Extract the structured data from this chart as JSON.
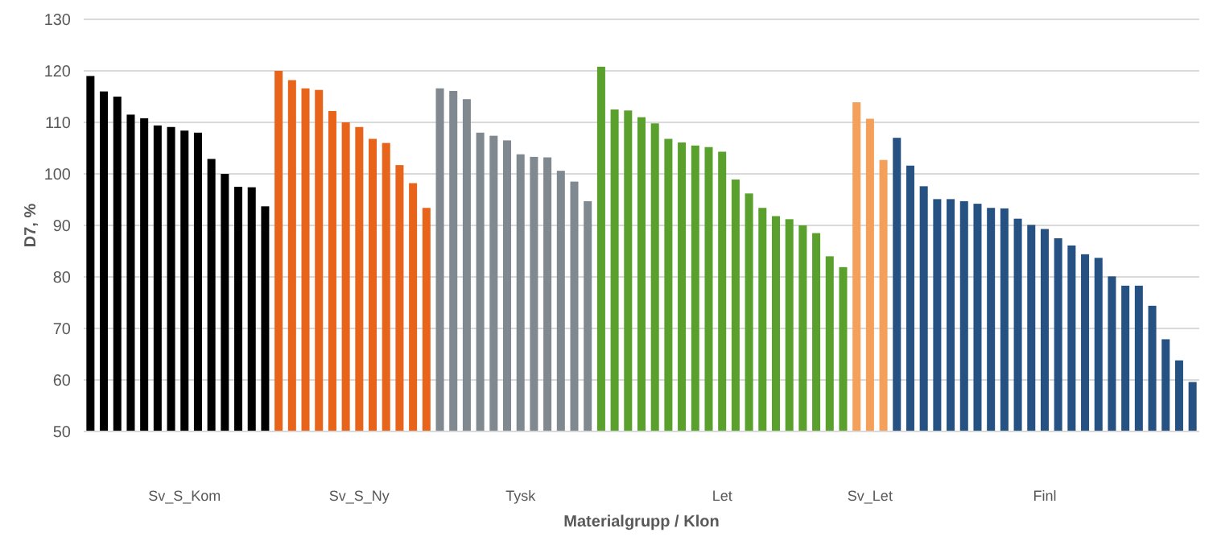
{
  "chart_data": {
    "type": "bar",
    "xlabel": "Materialgrupp / Klon",
    "ylabel": "D7, %",
    "categories": [
      null,
      null,
      null,
      null,
      null,
      null,
      null,
      "Sv_S_Kom",
      null,
      null,
      null,
      null,
      null,
      null,
      null,
      null,
      null,
      null,
      null,
      null,
      "Sv_S_Ny",
      null,
      null,
      null,
      null,
      null,
      null,
      null,
      null,
      null,
      null,
      null,
      "Tysk",
      null,
      null,
      null,
      null,
      null,
      null,
      null,
      null,
      null,
      null,
      null,
      null,
      null,
      null,
      "Let",
      null,
      null,
      null,
      null,
      null,
      null,
      null,
      null,
      null,
      null,
      "Sv_Let",
      null,
      null,
      null,
      null,
      null,
      null,
      null,
      null,
      null,
      null,
      null,
      null,
      "Finl",
      null,
      null,
      null,
      null,
      null,
      null,
      null,
      null,
      null,
      null,
      null
    ],
    "values": [
      119,
      116,
      115,
      111.5,
      110.8,
      109.4,
      109.1,
      108.4,
      108,
      102.9,
      100,
      97.5,
      97.4,
      93.7,
      120,
      118.2,
      116.6,
      116.3,
      112.2,
      110,
      109.1,
      106.8,
      106,
      101.7,
      98.2,
      93.4,
      116.6,
      116.1,
      114.5,
      108,
      107.4,
      106.5,
      103.8,
      103.3,
      103.2,
      100.6,
      98.5,
      94.7,
      120.8,
      112.5,
      112.3,
      111,
      109.8,
      106.8,
      106.1,
      105.5,
      105.2,
      104.3,
      98.9,
      96.2,
      93.4,
      91.8,
      91.2,
      90,
      88.5,
      84,
      81.9,
      113.9,
      110.7,
      102.7,
      107,
      101.6,
      97.6,
      95.1,
      95.1,
      94.7,
      94.2,
      93.4,
      93.3,
      91.3,
      90.1,
      89.3,
      87.5,
      86.1,
      84.4,
      83.7,
      80.1,
      78.3,
      78.3,
      74.4,
      67.9,
      63.8,
      59.6
    ],
    "colors": [
      "#000000",
      "#000000",
      "#000000",
      "#000000",
      "#000000",
      "#000000",
      "#000000",
      "#000000",
      "#000000",
      "#000000",
      "#000000",
      "#000000",
      "#000000",
      "#000000",
      "#e8641b",
      "#e8641b",
      "#e8641b",
      "#e8641b",
      "#e8641b",
      "#e8641b",
      "#e8641b",
      "#e8641b",
      "#e8641b",
      "#e8641b",
      "#e8641b",
      "#e8641b",
      "#808890",
      "#808890",
      "#808890",
      "#808890",
      "#808890",
      "#808890",
      "#808890",
      "#808890",
      "#808890",
      "#808890",
      "#808890",
      "#808890",
      "#5aa02c",
      "#5aa02c",
      "#5aa02c",
      "#5aa02c",
      "#5aa02c",
      "#5aa02c",
      "#5aa02c",
      "#5aa02c",
      "#5aa02c",
      "#5aa02c",
      "#5aa02c",
      "#5aa02c",
      "#5aa02c",
      "#5aa02c",
      "#5aa02c",
      "#5aa02c",
      "#5aa02c",
      "#5aa02c",
      "#5aa02c",
      "#f5a05a",
      "#f5a05a",
      "#f5a05a",
      "#255282",
      "#255282",
      "#255282",
      "#255282",
      "#255282",
      "#255282",
      "#255282",
      "#255282",
      "#255282",
      "#255282",
      "#255282",
      "#255282",
      "#255282",
      "#255282",
      "#255282",
      "#255282",
      "#255282",
      "#255282",
      "#255282",
      "#255282",
      "#255282",
      "#255282",
      "#255282"
    ],
    "ylim": [
      50,
      130
    ],
    "yticks": [
      50,
      60,
      70,
      80,
      90,
      100,
      110,
      120,
      130
    ],
    "grid": "y"
  }
}
